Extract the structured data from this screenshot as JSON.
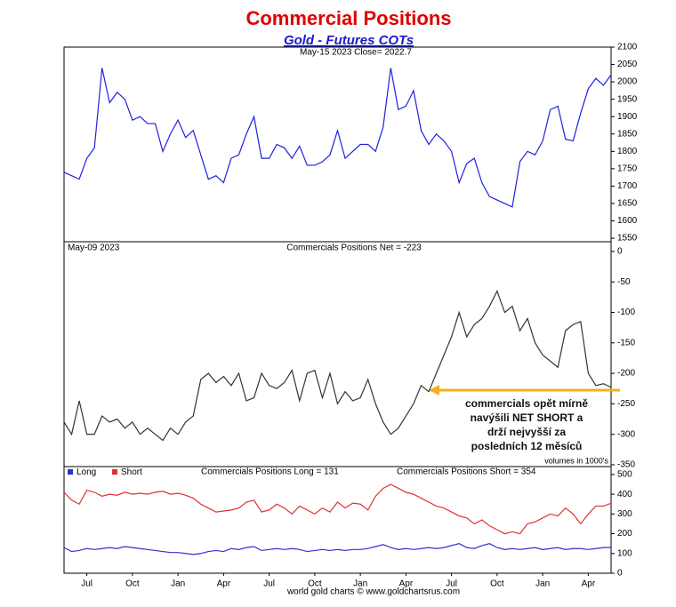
{
  "header": {
    "title": "Commercial Positions",
    "subtitle": "Gold - Futures COTs"
  },
  "footer": "world gold charts © www.goldchartsrus.com",
  "chart_data": [
    {
      "type": "line",
      "subtitle": "May-15  2023   Close= 2022.7",
      "color": "#2020e0",
      "values": [
        1740,
        1730,
        1720,
        1780,
        1810,
        2040,
        1940,
        1970,
        1950,
        1890,
        1900,
        1880,
        1880,
        1800,
        1850,
        1890,
        1840,
        1860,
        1790,
        1720,
        1730,
        1710,
        1780,
        1790,
        1850,
        1900,
        1780,
        1780,
        1820,
        1810,
        1780,
        1815,
        1760,
        1760,
        1770,
        1790,
        1860,
        1780,
        1800,
        1820,
        1820,
        1800,
        1870,
        2040,
        1920,
        1930,
        1975,
        1860,
        1820,
        1850,
        1830,
        1800,
        1710,
        1765,
        1780,
        1710,
        1670,
        1660,
        1650,
        1640,
        1770,
        1800,
        1790,
        1830,
        1920,
        1930,
        1835,
        1830,
        1910,
        1980,
        2010,
        1990,
        2020
      ],
      "ylim": [
        1540,
        2100
      ],
      "yticks": [
        1550,
        1600,
        1650,
        1700,
        1750,
        1800,
        1850,
        1900,
        1950,
        2000,
        2050,
        2100
      ]
    },
    {
      "type": "line",
      "date_label": "May-09  2023",
      "title": "Commercials Positions Net = -223",
      "note": "volumes in 1000's",
      "color": "#333333",
      "annotation": [
        "commercials opět mírně",
        "navýšili NET SHORT a",
        "drží nejvyšší za",
        "posledních 12 měsíců"
      ],
      "values": [
        -280,
        -300,
        -245,
        -300,
        -300,
        -270,
        -280,
        -275,
        -290,
        -280,
        -300,
        -290,
        -300,
        -310,
        -290,
        -300,
        -280,
        -270,
        -210,
        -200,
        -215,
        -205,
        -220,
        -200,
        -245,
        -240,
        -200,
        -220,
        -225,
        -215,
        -195,
        -245,
        -200,
        -195,
        -240,
        -200,
        -250,
        -230,
        -245,
        -240,
        -210,
        -250,
        -280,
        -300,
        -290,
        -270,
        -250,
        -220,
        -230,
        -200,
        -170,
        -140,
        -100,
        -140,
        -120,
        -110,
        -90,
        -65,
        -100,
        -90,
        -130,
        -110,
        -150,
        -170,
        -180,
        -190,
        -130,
        -120,
        -115,
        -200,
        -220,
        -217,
        -223
      ],
      "ylim": [
        -353,
        16
      ],
      "yticks": [
        0,
        -50,
        -100,
        -150,
        -200,
        -250,
        -300,
        -350
      ]
    },
    {
      "type": "line",
      "annotations": [
        "Commercials Positions Long = 131",
        "Commercials Positions Short = 354"
      ],
      "categories": [
        null,
        null,
        null,
        "Jul",
        null,
        null,
        null,
        null,
        null,
        "Oct",
        null,
        null,
        null,
        null,
        null,
        "Jan",
        null,
        null,
        null,
        null,
        null,
        "Apr",
        null,
        null,
        null,
        null,
        null,
        "Jul",
        null,
        null,
        null,
        null,
        null,
        "Oct",
        null,
        null,
        null,
        null,
        null,
        "Jan",
        null,
        null,
        null,
        null,
        null,
        "Apr",
        null,
        null,
        null,
        null,
        null,
        "Jul",
        null,
        null,
        null,
        null,
        null,
        "Oct",
        null,
        null,
        null,
        null,
        null,
        "Jan",
        null,
        null,
        null,
        null,
        null,
        "Apr",
        null,
        null,
        null
      ],
      "series": [
        {
          "name": "Long",
          "color": "#3030d0",
          "values": [
            130,
            110,
            115,
            125,
            120,
            125,
            130,
            125,
            135,
            130,
            125,
            120,
            115,
            110,
            105,
            105,
            100,
            95,
            100,
            110,
            115,
            110,
            125,
            120,
            130,
            135,
            115,
            120,
            125,
            120,
            125,
            120,
            110,
            115,
            120,
            115,
            120,
            115,
            120,
            120,
            125,
            135,
            145,
            130,
            120,
            125,
            120,
            125,
            130,
            125,
            130,
            140,
            150,
            130,
            125,
            140,
            150,
            130,
            120,
            125,
            120,
            125,
            130,
            120,
            125,
            130,
            120,
            125,
            125,
            120,
            125,
            130,
            131
          ]
        },
        {
          "name": "Short",
          "color": "#e03030",
          "values": [
            410,
            370,
            350,
            420,
            410,
            390,
            400,
            395,
            410,
            400,
            405,
            400,
            410,
            415,
            400,
            405,
            395,
            380,
            350,
            330,
            310,
            315,
            320,
            330,
            360,
            370,
            310,
            320,
            350,
            330,
            300,
            340,
            320,
            300,
            330,
            310,
            360,
            330,
            355,
            350,
            320,
            390,
            430,
            450,
            430,
            410,
            400,
            380,
            360,
            340,
            330,
            310,
            290,
            280,
            250,
            270,
            240,
            220,
            200,
            210,
            200,
            250,
            260,
            280,
            300,
            290,
            330,
            300,
            250,
            300,
            340,
            340,
            354
          ]
        }
      ],
      "ylim": [
        0,
        540
      ],
      "yticks": [
        0,
        100,
        200,
        300,
        400,
        500
      ]
    }
  ]
}
